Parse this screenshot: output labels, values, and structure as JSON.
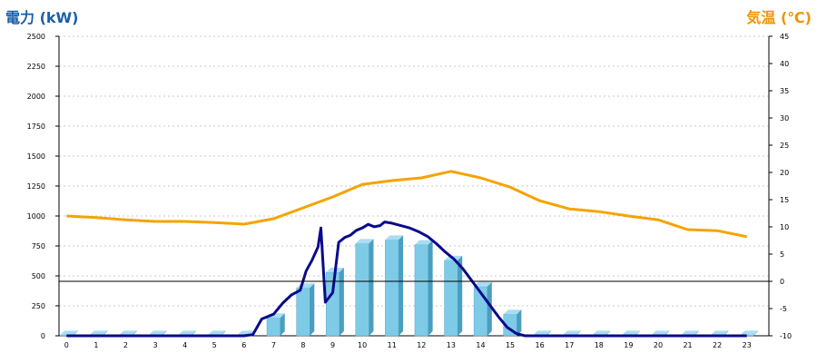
{
  "chart_data": {
    "type": "bar",
    "left_axis_title": "電力 (kW)",
    "right_axis_title": "気温 (℃)",
    "categories": [
      "0",
      "1",
      "2",
      "3",
      "4",
      "5",
      "6",
      "7",
      "8",
      "9",
      "10",
      "11",
      "12",
      "13",
      "14",
      "15",
      "16",
      "17",
      "18",
      "19",
      "20",
      "21",
      "22",
      "23"
    ],
    "ylim_left": [
      0,
      2500
    ],
    "yticks_left": [
      "0",
      "250",
      "500",
      "750",
      "1000",
      "1250",
      "1500",
      "1750",
      "2000",
      "2250",
      "2500"
    ],
    "ylim_right": [
      -10,
      45
    ],
    "yticks_right": [
      "-10",
      "-5",
      "0",
      "5",
      "10",
      "15",
      "20",
      "25",
      "30",
      "35",
      "40",
      "45"
    ],
    "grid": true,
    "series": [
      {
        "kind": "bar",
        "axis": "left",
        "color": "#7ecbe8",
        "values": [
          5,
          5,
          5,
          5,
          5,
          5,
          5,
          150,
          400,
          530,
          770,
          800,
          760,
          630,
          410,
          180,
          5,
          5,
          5,
          5,
          5,
          5,
          5,
          5
        ]
      },
      {
        "kind": "line",
        "axis": "left",
        "color": "#0a0a8c",
        "x": [
          0,
          1,
          2,
          3,
          4,
          5,
          6,
          6.3,
          6.6,
          7.0,
          7.3,
          7.6,
          7.9,
          8.1,
          8.3,
          8.5,
          8.6,
          8.75,
          9.0,
          9.2,
          9.4,
          9.6,
          9.8,
          10.0,
          10.2,
          10.4,
          10.6,
          10.75,
          11.0,
          11.3,
          11.6,
          11.9,
          12.2,
          12.5,
          12.8,
          13.1,
          13.4,
          13.7,
          14.0,
          14.3,
          14.6,
          14.9,
          15.2,
          15.5,
          15.8,
          16,
          17,
          18,
          19,
          20,
          21,
          22,
          23
        ],
        "values": [
          0,
          0,
          0,
          0,
          0,
          0,
          0,
          10,
          140,
          180,
          270,
          340,
          380,
          540,
          630,
          740,
          900,
          280,
          360,
          780,
          820,
          840,
          880,
          900,
          930,
          910,
          920,
          950,
          940,
          920,
          900,
          870,
          830,
          770,
          700,
          640,
          560,
          460,
          360,
          260,
          160,
          70,
          20,
          0,
          0,
          0,
          0,
          0,
          0,
          0,
          0,
          0,
          0
        ]
      },
      {
        "kind": "line",
        "axis": "right",
        "color": "#f5a300",
        "values": [
          12.0,
          11.7,
          11.3,
          11.0,
          11.0,
          10.8,
          10.5,
          11.5,
          13.5,
          15.5,
          17.8,
          18.5,
          19.0,
          20.2,
          19.0,
          17.3,
          14.8,
          13.3,
          12.8,
          12.0,
          11.3,
          9.5,
          9.3,
          8.2
        ]
      },
      {
        "kind": "reference",
        "axis": "right",
        "color": "#000000",
        "value": 0
      }
    ]
  }
}
